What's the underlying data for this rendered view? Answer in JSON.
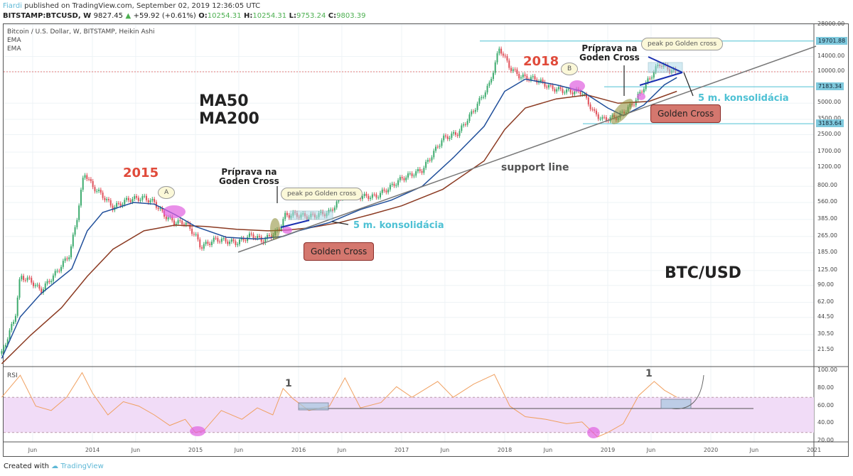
{
  "header": {
    "author": "Fiardi",
    "published": " published on TradingView.com, September 02, 2019 12:36:05 UTC",
    "symbol": "BITSTAMP:BTCUSD, W",
    "last": "9827.45",
    "change": "+59.92 (+0.61%)",
    "o_label": "O:",
    "o": "10254.31",
    "h_label": "H:",
    "h": "10254.31",
    "l_label": "L:",
    "l": "9753.24",
    "c_label": "C:",
    "c": "9803.39"
  },
  "legend": {
    "title": "Bitcoin / U.S. Dollar, W, BITSTAMP, Heikin Ashi",
    "ema1": "EMA",
    "ema2": "EMA",
    "rsi": "RSI"
  },
  "annotations": {
    "ma50": "MA50",
    "ma200": "MA200",
    "y2015": "2015",
    "y2018": "2018",
    "a": "A",
    "b": "B",
    "prep1": "Príprava na\nGoden Cross",
    "prep2": "Príprava na\nGoden Cross",
    "peak1": "peak po Golden cross",
    "peak2": "peak po Golden cross",
    "cons1": "5 m. konsolidácia",
    "cons2": "5 m. konsolidácia",
    "gc1": "Golden Cross",
    "gc2": "Golden Cross",
    "support": "support line",
    "pair": "BTC/USD",
    "rsi1": "1",
    "rsi2": "1"
  },
  "footer": {
    "created": "Created with ",
    "brand": "TradingView"
  },
  "colors": {
    "up": "#3dab6e",
    "down": "#e0515a",
    "ema50": "#1f4e9a",
    "ema200": "#8b3a22",
    "accent": "#4ec1d4",
    "rsi": "#f0a060"
  },
  "chart_data": {
    "type": "candlestick-line",
    "scale": "log",
    "title": "Bitcoin / U.S. Dollar, W, BITSTAMP, Heikin Ashi",
    "y_ticks": [
      "28000.00",
      "14000.00",
      "10000.00",
      "5000.00",
      "3500.00",
      "2500.00",
      "1700.00",
      "1200.00",
      "800.00",
      "560.00",
      "385.00",
      "265.00",
      "185.00",
      "125.00",
      "90.00",
      "62.00",
      "44.50",
      "30.50",
      "21.50"
    ],
    "y_tick_values": [
      28000,
      14000,
      10000,
      5000,
      3500,
      2500,
      1700,
      1200,
      800,
      560,
      385,
      265,
      185,
      125,
      90,
      62,
      44.5,
      30.5,
      21.5
    ],
    "price_labels": [
      {
        "text": "19701.88",
        "value": 19701.88
      },
      {
        "text": "7183.34",
        "value": 7183.34
      },
      {
        "text": "3183.64",
        "value": 3183.64
      }
    ],
    "x_ticks": [
      {
        "t": 2013.42,
        "l": "Jun"
      },
      {
        "t": 2014,
        "l": "2014"
      },
      {
        "t": 2014.42,
        "l": "Jun"
      },
      {
        "t": 2015,
        "l": "2015"
      },
      {
        "t": 2015.42,
        "l": "Jun"
      },
      {
        "t": 2016,
        "l": "2016"
      },
      {
        "t": 2016.42,
        "l": "Jun"
      },
      {
        "t": 2017,
        "l": "2017"
      },
      {
        "t": 2017.42,
        "l": "Jun"
      },
      {
        "t": 2018,
        "l": "2018"
      },
      {
        "t": 2018.42,
        "l": "Jun"
      },
      {
        "t": 2019,
        "l": "2019"
      },
      {
        "t": 2019.42,
        "l": "Jun"
      },
      {
        "t": 2020,
        "l": "2020"
      },
      {
        "t": 2020.42,
        "l": "Jun"
      },
      {
        "t": 2021,
        "l": "2021"
      }
    ],
    "price": [
      [
        2013.12,
        20
      ],
      [
        2013.25,
        45
      ],
      [
        2013.3,
        110
      ],
      [
        2013.4,
        100
      ],
      [
        2013.5,
        80
      ],
      [
        2013.65,
        120
      ],
      [
        2013.78,
        180
      ],
      [
        2013.85,
        400
      ],
      [
        2013.92,
        1100
      ],
      [
        2014.0,
        800
      ],
      [
        2014.1,
        650
      ],
      [
        2014.2,
        500
      ],
      [
        2014.35,
        600
      ],
      [
        2014.5,
        620
      ],
      [
        2014.6,
        560
      ],
      [
        2014.7,
        420
      ],
      [
        2014.8,
        360
      ],
      [
        2014.9,
        360
      ],
      [
        2015.0,
        270
      ],
      [
        2015.05,
        210
      ],
      [
        2015.2,
        250
      ],
      [
        2015.4,
        230
      ],
      [
        2015.55,
        275
      ],
      [
        2015.65,
        240
      ],
      [
        2015.8,
        300
      ],
      [
        2015.87,
        420
      ],
      [
        2015.95,
        430
      ],
      [
        2016.1,
        410
      ],
      [
        2016.3,
        450
      ],
      [
        2016.45,
        700
      ],
      [
        2016.55,
        640
      ],
      [
        2016.75,
        640
      ],
      [
        2016.9,
        800
      ],
      [
        2017.0,
        950
      ],
      [
        2017.2,
        1150
      ],
      [
        2017.4,
        2300
      ],
      [
        2017.55,
        2600
      ],
      [
        2017.7,
        4300
      ],
      [
        2017.85,
        7500
      ],
      [
        2017.95,
        17000
      ],
      [
        2018.05,
        11000
      ],
      [
        2018.15,
        9000
      ],
      [
        2018.3,
        8500
      ],
      [
        2018.45,
        7000
      ],
      [
        2018.6,
        6500
      ],
      [
        2018.75,
        6400
      ],
      [
        2018.87,
        4000
      ],
      [
        2018.95,
        3500
      ],
      [
        2019.1,
        3700
      ],
      [
        2019.25,
        5000
      ],
      [
        2019.4,
        8500
      ],
      [
        2019.5,
        12000
      ],
      [
        2019.6,
        10500
      ],
      [
        2019.67,
        9800
      ]
    ],
    "ema50": [
      [
        2013.12,
        18
      ],
      [
        2013.3,
        45
      ],
      [
        2013.5,
        75
      ],
      [
        2013.8,
        130
      ],
      [
        2013.95,
        300
      ],
      [
        2014.1,
        450
      ],
      [
        2014.4,
        560
      ],
      [
        2014.6,
        540
      ],
      [
        2014.8,
        430
      ],
      [
        2015.0,
        330
      ],
      [
        2015.3,
        260
      ],
      [
        2015.6,
        250
      ],
      [
        2015.85,
        265
      ],
      [
        2016.0,
        300
      ],
      [
        2016.3,
        360
      ],
      [
        2016.6,
        480
      ],
      [
        2016.9,
        590
      ],
      [
        2017.2,
        800
      ],
      [
        2017.5,
        1500
      ],
      [
        2017.8,
        3000
      ],
      [
        2018.0,
        6500
      ],
      [
        2018.2,
        8500
      ],
      [
        2018.5,
        7500
      ],
      [
        2018.75,
        6500
      ],
      [
        2019.0,
        4500
      ],
      [
        2019.15,
        3800
      ],
      [
        2019.35,
        4800
      ],
      [
        2019.55,
        7500
      ],
      [
        2019.67,
        8800
      ]
    ],
    "ema200": [
      [
        2013.12,
        16
      ],
      [
        2013.4,
        30
      ],
      [
        2013.7,
        55
      ],
      [
        2013.95,
        110
      ],
      [
        2014.2,
        200
      ],
      [
        2014.5,
        300
      ],
      [
        2014.8,
        340
      ],
      [
        2015.1,
        330
      ],
      [
        2015.4,
        310
      ],
      [
        2015.7,
        300
      ],
      [
        2015.9,
        305
      ],
      [
        2016.1,
        320
      ],
      [
        2016.4,
        360
      ],
      [
        2016.7,
        430
      ],
      [
        2017.0,
        520
      ],
      [
        2017.4,
        750
      ],
      [
        2017.8,
        1400
      ],
      [
        2018.0,
        2800
      ],
      [
        2018.2,
        4500
      ],
      [
        2018.5,
        5500
      ],
      [
        2018.8,
        6000
      ],
      [
        2019.1,
        5000
      ],
      [
        2019.4,
        5200
      ],
      [
        2019.67,
        6500
      ]
    ],
    "rsi": {
      "ylim": [
        20,
        100
      ],
      "ticks": [
        "100.00",
        "80.00",
        "60.00",
        "40.00",
        "20.00"
      ],
      "tick_values": [
        100,
        80,
        60,
        40,
        20
      ],
      "band": [
        30,
        70
      ],
      "values": [
        [
          2013.12,
          70
        ],
        [
          2013.3,
          95
        ],
        [
          2013.45,
          60
        ],
        [
          2013.6,
          55
        ],
        [
          2013.75,
          70
        ],
        [
          2013.9,
          98
        ],
        [
          2014.0,
          75
        ],
        [
          2014.15,
          50
        ],
        [
          2014.3,
          65
        ],
        [
          2014.45,
          60
        ],
        [
          2014.6,
          50
        ],
        [
          2014.75,
          38
        ],
        [
          2014.9,
          45
        ],
        [
          2015.0,
          30
        ],
        [
          2015.08,
          32
        ],
        [
          2015.25,
          55
        ],
        [
          2015.45,
          45
        ],
        [
          2015.6,
          58
        ],
        [
          2015.75,
          50
        ],
        [
          2015.85,
          80
        ],
        [
          2015.95,
          68
        ],
        [
          2016.1,
          55
        ],
        [
          2016.3,
          60
        ],
        [
          2016.45,
          92
        ],
        [
          2016.6,
          58
        ],
        [
          2016.8,
          64
        ],
        [
          2016.95,
          82
        ],
        [
          2017.1,
          70
        ],
        [
          2017.35,
          88
        ],
        [
          2017.5,
          70
        ],
        [
          2017.7,
          85
        ],
        [
          2017.9,
          96
        ],
        [
          2018.05,
          60
        ],
        [
          2018.2,
          48
        ],
        [
          2018.4,
          45
        ],
        [
          2018.6,
          40
        ],
        [
          2018.75,
          42
        ],
        [
          2018.9,
          25
        ],
        [
          2019.0,
          30
        ],
        [
          2019.15,
          40
        ],
        [
          2019.3,
          72
        ],
        [
          2019.45,
          88
        ],
        [
          2019.55,
          78
        ],
        [
          2019.67,
          70
        ]
      ]
    }
  }
}
